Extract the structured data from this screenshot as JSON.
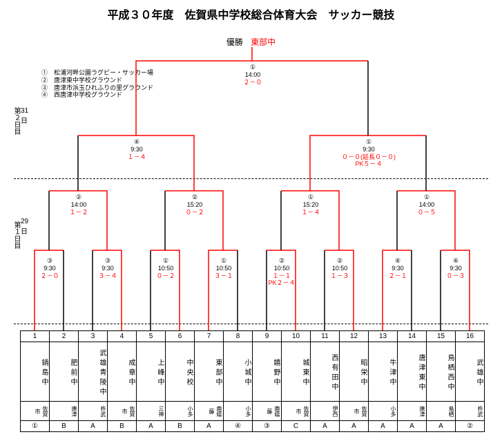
{
  "title": "平成３０年度　佐賀県中学校総合体育大会　サッカー競技",
  "champion": {
    "label": "優勝",
    "name": "東部中"
  },
  "venues": {
    "v1": "①　松浦河畔公園ラグビー・サッカー場",
    "v2": "②　唐津東中学校グラウンド",
    "v3": "③　唐津市浜玉ひれふりの里グラウンド",
    "v4": "④　西唐津中学校グラウンド"
  },
  "day2": {
    "label": "第２日目",
    "date": "31日"
  },
  "day1": {
    "label": "第１日目",
    "date": "29日"
  },
  "final": {
    "venue": "①",
    "time": "14:00",
    "score": "２－０"
  },
  "sf1": {
    "venue": "④",
    "time": "9:30",
    "score": "１－４"
  },
  "sf2": {
    "venue": "①",
    "time": "9:30",
    "score": "０－０(延長０－０)",
    "score2": "PK５－４"
  },
  "qf1": {
    "venue": "②",
    "time": "14:00",
    "score": "１－２"
  },
  "qf2": {
    "venue": "②",
    "time": "15:20",
    "score": "０－２"
  },
  "qf3": {
    "venue": "①",
    "time": "15:20",
    "score": "１－４"
  },
  "qf4": {
    "venue": "①",
    "time": "14:00",
    "score": "０－５"
  },
  "r1_1": {
    "venue": "③",
    "time": "9:30",
    "score": "２－０"
  },
  "r1_2": {
    "venue": "③",
    "time": "9:30",
    "score": "３－４"
  },
  "r1_3": {
    "venue": "①",
    "time": "10:50",
    "score": "０－２"
  },
  "r1_4": {
    "venue": "①",
    "time": "10:50",
    "score": "３－１"
  },
  "r1_5": {
    "venue": "②",
    "time": "10:50",
    "score": "１－１",
    "score2": "PK２－４"
  },
  "r1_6": {
    "venue": "②",
    "time": "10:50",
    "score": "１－３"
  },
  "r1_7": {
    "venue": "④",
    "time": "9:30",
    "score": "２－１"
  },
  "r1_8": {
    "venue": "④",
    "time": "9:30",
    "score": "０－３"
  },
  "teams": [
    {
      "n": "1",
      "name": "鍋島中",
      "city": "佐賀市",
      "seed": "①"
    },
    {
      "n": "2",
      "name": "肥前中",
      "city": "唐津",
      "seed": "B"
    },
    {
      "n": "3",
      "name": "武雄青陵中",
      "city": "杵武",
      "seed": "A"
    },
    {
      "n": "4",
      "name": "成章中",
      "city": "佐賀市",
      "seed": "B"
    },
    {
      "n": "5",
      "name": "上峰中",
      "city": "三神",
      "seed": "A"
    },
    {
      "n": "6",
      "name": "中央校",
      "city": "小多",
      "seed": "B"
    },
    {
      "n": "7",
      "name": "東部中",
      "city": "鹿嬉藤",
      "seed": "A"
    },
    {
      "n": "8",
      "name": "小城中",
      "city": "小多",
      "seed": "④"
    },
    {
      "n": "9",
      "name": "嬉野中",
      "city": "鹿嬉藤",
      "seed": "③"
    },
    {
      "n": "10",
      "name": "城東中",
      "city": "佐賀市",
      "seed": "C"
    },
    {
      "n": "11",
      "name": "西有田中",
      "city": "伊西",
      "seed": "A"
    },
    {
      "n": "12",
      "name": "昭栄中",
      "city": "佐賀市",
      "seed": "A"
    },
    {
      "n": "13",
      "name": "牛津中",
      "city": "小多",
      "seed": "A"
    },
    {
      "n": "14",
      "name": "唐津東中",
      "city": "唐津",
      "seed": "A"
    },
    {
      "n": "15",
      "name": "鳥栖西中",
      "city": "鳥栖",
      "seed": "A"
    },
    {
      "n": "16",
      "name": "武雄中",
      "city": "杵武",
      "seed": "②"
    }
  ],
  "colors": {
    "win": "#ff0000",
    "lose": "#000000",
    "text": "#000000"
  }
}
